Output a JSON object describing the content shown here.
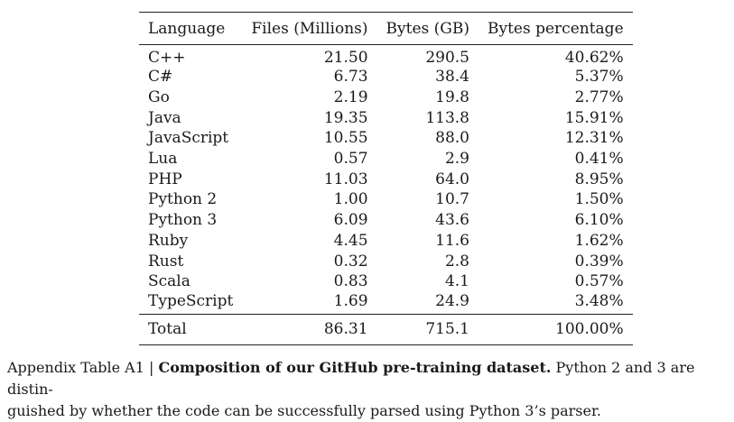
{
  "table": {
    "headers": [
      "Language",
      "Files (Millions)",
      "Bytes (GB)",
      "Bytes percentage"
    ],
    "rows": [
      [
        "C++",
        "21.50",
        "290.5",
        "40.62%"
      ],
      [
        "C#",
        "6.73",
        "38.4",
        "5.37%"
      ],
      [
        "Go",
        "2.19",
        "19.8",
        "2.77%"
      ],
      [
        "Java",
        "19.35",
        "113.8",
        "15.91%"
      ],
      [
        "JavaScript",
        "10.55",
        "88.0",
        "12.31%"
      ],
      [
        "Lua",
        "0.57",
        "2.9",
        "0.41%"
      ],
      [
        "PHP",
        "11.03",
        "64.0",
        "8.95%"
      ],
      [
        "Python 2",
        "1.00",
        "10.7",
        "1.50%"
      ],
      [
        "Python 3",
        "6.09",
        "43.6",
        "6.10%"
      ],
      [
        "Ruby",
        "4.45",
        "11.6",
        "1.62%"
      ],
      [
        "Rust",
        "0.32",
        "2.8",
        "0.39%"
      ],
      [
        "Scala",
        "0.83",
        "4.1",
        "0.57%"
      ],
      [
        "TypeScript",
        "1.69",
        "24.9",
        "3.48%"
      ]
    ],
    "total": [
      "Total",
      "86.31",
      "715.1",
      "100.00%"
    ]
  },
  "caption": {
    "label": "Appendix Table A1 | ",
    "title": "Composition of our GitHub pre-training dataset.",
    "text_line1": " Python 2 and 3 are distin-",
    "text_line2": "guished by whether the code can be successfully parsed using Python 3’s parser."
  }
}
